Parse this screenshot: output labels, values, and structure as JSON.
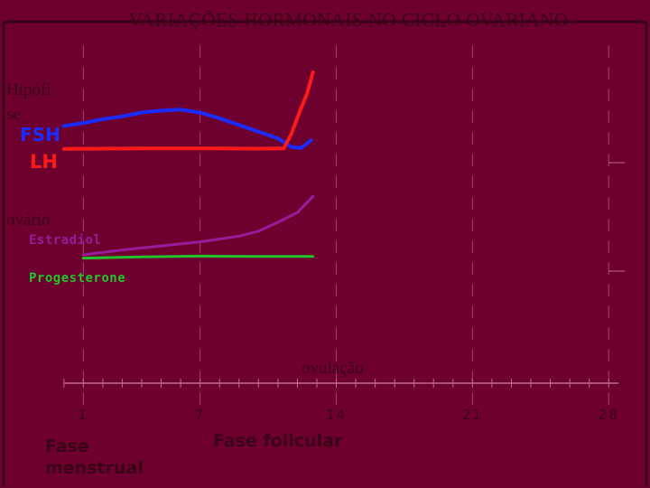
{
  "title": "VARIAÇÕES HORMONAIS NO CICLO OVARIANO",
  "labels": {
    "hipofise": "Hipófi se",
    "ovario": "ovário",
    "ovulacao": "ovulação",
    "fase_menstrual": "Fase menstrual",
    "fase_folicular": "Fase folicular"
  },
  "colors": {
    "background": "#6e0030",
    "dark_text": "#3a0016",
    "fsh": "#1a2cff",
    "lh": "#ff1a1a",
    "estradiol": "#9a1a9a",
    "progesterone": "#22c42a"
  },
  "chart_data": {
    "type": "line",
    "title": "VARIAÇÕES HORMONAIS NO CICLO OVARIANO",
    "xlabel": "",
    "ylabel": "",
    "xlim": [
      -0.5,
      28.5
    ],
    "xticks": [
      1,
      7,
      14,
      21,
      28
    ],
    "grid": true,
    "series": [
      {
        "name": "FSH",
        "panel": "Hipófi se",
        "color": "#1a2cff",
        "x": [
          0,
          1,
          2,
          3,
          4,
          5,
          6,
          7,
          8,
          9,
          10,
          11,
          11.7,
          12.2,
          12.7
        ],
        "y": [
          44,
          47,
          51,
          54,
          58,
          60,
          61,
          58,
          52,
          45,
          38,
          31,
          22,
          21,
          29
        ]
      },
      {
        "name": "LH",
        "panel": "Hipófi se",
        "color": "#ff1a1a",
        "x": [
          0,
          2,
          4,
          6,
          8,
          10,
          11.3,
          11.7,
          12.1,
          12.5,
          12.8
        ],
        "y": [
          20,
          20.3,
          20.5,
          20.6,
          20.5,
          20.3,
          20.5,
          36,
          58,
          78,
          100
        ]
      },
      {
        "name": "Estradiol",
        "panel": "ovário",
        "color": "#9a1a9a",
        "x": [
          1,
          3,
          5,
          7,
          9,
          10,
          11,
          12,
          12.8
        ],
        "y": [
          20,
          26,
          31,
          36,
          43,
          49,
          60,
          72,
          92
        ]
      },
      {
        "name": "Progesterone",
        "panel": "ovário",
        "color": "#22c42a",
        "x": [
          1,
          4,
          7,
          10,
          12.8
        ],
        "y": [
          16,
          17.5,
          18.5,
          18,
          18
        ]
      }
    ]
  }
}
